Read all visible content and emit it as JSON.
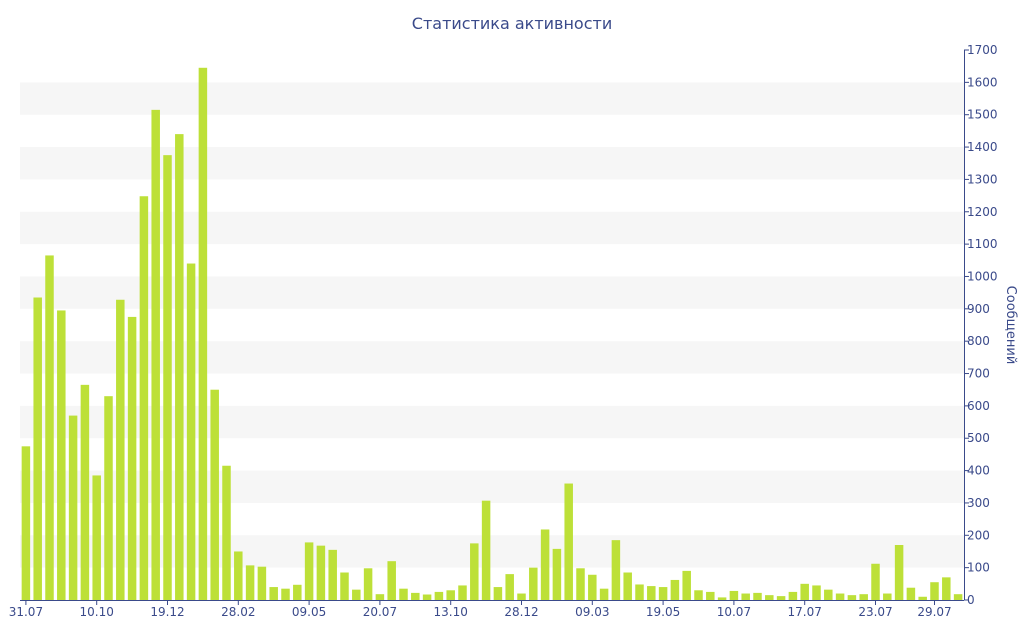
{
  "chart_data": {
    "type": "bar",
    "title": "Статистика активности",
    "ylabel": "Сообщений",
    "ylim": [
      0,
      1700
    ],
    "yticks": [
      0,
      100,
      200,
      300,
      400,
      500,
      600,
      700,
      800,
      900,
      1000,
      1100,
      1200,
      1300,
      1400,
      1500,
      1600,
      1700
    ],
    "xtick_labels": [
      "31.07",
      "10.10",
      "19.12",
      "28.02",
      "09.05",
      "20.07",
      "13.10",
      "28.12",
      "09.03",
      "19.05",
      "10.07",
      "17.07",
      "23.07",
      "29.07"
    ],
    "xtick_indices": [
      0,
      6,
      12,
      18,
      24,
      30,
      36,
      42,
      48,
      54,
      60,
      66,
      72,
      77
    ],
    "values": [
      475,
      935,
      1065,
      895,
      570,
      665,
      385,
      630,
      928,
      875,
      1248,
      1515,
      1375,
      1440,
      1040,
      1645,
      650,
      415,
      150,
      107,
      103,
      40,
      35,
      47,
      178,
      168,
      155,
      85,
      32,
      98,
      18,
      120,
      35,
      22,
      17,
      25,
      30,
      45,
      175,
      307,
      40,
      80,
      20,
      100,
      218,
      158,
      360,
      98,
      78,
      35,
      185,
      85,
      48,
      43,
      40,
      62,
      90,
      30,
      25,
      8,
      28,
      20,
      22,
      15,
      12,
      25,
      50,
      45,
      32,
      20,
      15,
      18,
      112,
      20,
      170,
      38,
      10,
      55,
      70,
      18
    ],
    "bar_color": "#bde038",
    "band_color": "#f6f6f6",
    "axis_color": "#3a4a8a",
    "grid": "alternating horizontal bands",
    "legend": "none"
  }
}
